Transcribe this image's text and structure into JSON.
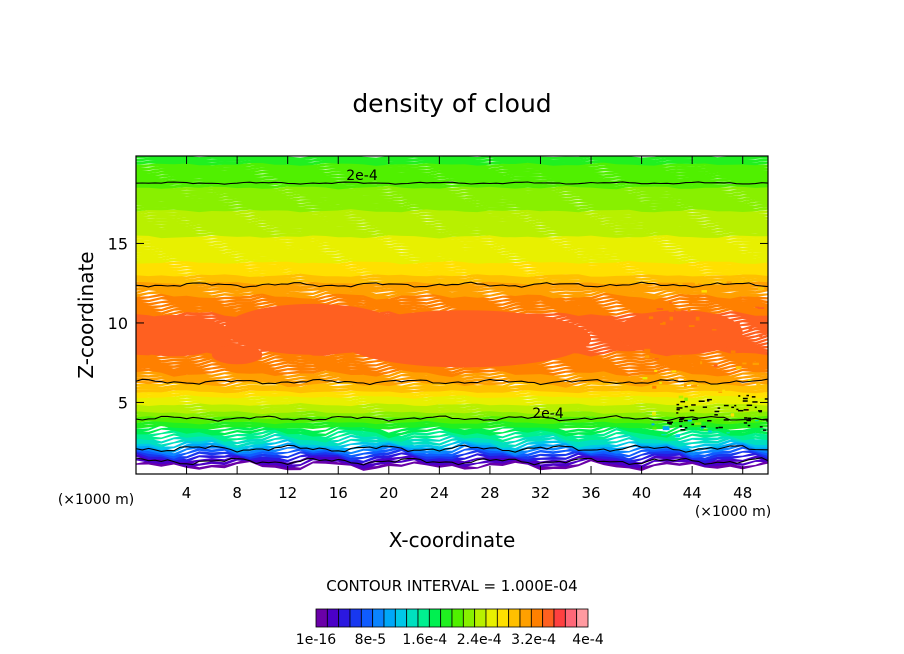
{
  "chart_data": {
    "type": "heatmap",
    "title": "density of cloud",
    "xlabel": "X-coordinate",
    "ylabel": "Z-coordinate",
    "x_unit": "(×1000 m)",
    "xlim": [
      0,
      50
    ],
    "ylim": [
      0.5,
      20.5
    ],
    "x_ticks": [
      4,
      8,
      12,
      16,
      20,
      24,
      28,
      32,
      36,
      40,
      44,
      48
    ],
    "y_ticks": [
      5,
      10,
      15
    ],
    "contour_interval_text": "CONTOUR INTERVAL = 1.000E-04",
    "contour_interval": 0.0001,
    "contour_labels": [
      "2e-4",
      "2e-4"
    ],
    "colorbar": {
      "min": 1e-16,
      "max": 0.0004,
      "labels": [
        "1e-16",
        "8e-5",
        "1.6e-4",
        "2.4e-4",
        "3.2e-4",
        "4e-4"
      ],
      "colors": [
        "#6a00a8",
        "#4b00c8",
        "#2b18e0",
        "#1838f0",
        "#0f5cff",
        "#0a84ff",
        "#00a8f8",
        "#00c8e8",
        "#00e0c0",
        "#00f090",
        "#00f050",
        "#20f020",
        "#50f000",
        "#88f000",
        "#b8f000",
        "#e8f000",
        "#ffe000",
        "#ffc000",
        "#ffa000",
        "#ff8000",
        "#ff6020",
        "#ff4040",
        "#ff6878",
        "#ff9aa0"
      ]
    },
    "vertical_profile": {
      "z": [
        1.0,
        1.4,
        1.8,
        2.2,
        2.6,
        3.0,
        3.4,
        3.8,
        4.2,
        4.6,
        5.0,
        5.5,
        6.0,
        6.5,
        7.0,
        8.0,
        9.0,
        10.0,
        11.0,
        12.0,
        12.5,
        13.0,
        14.0,
        15.0,
        16.0,
        17.0,
        18.0,
        19.0,
        20.0,
        20.5
      ],
      "density": [
        1e-05,
        3e-05,
        7e-05,
        0.0001,
        0.00014,
        0.00016,
        0.00018,
        0.0002,
        0.00022,
        0.00024,
        0.000255,
        0.00027,
        0.000295,
        0.00031,
        0.00032,
        0.00033,
        0.000345,
        0.00034,
        0.00033,
        0.00031,
        0.0003,
        0.000285,
        0.000265,
        0.000255,
        0.000245,
        0.000235,
        0.000225,
        0.00021,
        0.0002,
        0.000195
      ]
    },
    "contour_levels_z": [
      1.3,
      2.1,
      4.0,
      6.3,
      12.4,
      18.8
    ]
  }
}
